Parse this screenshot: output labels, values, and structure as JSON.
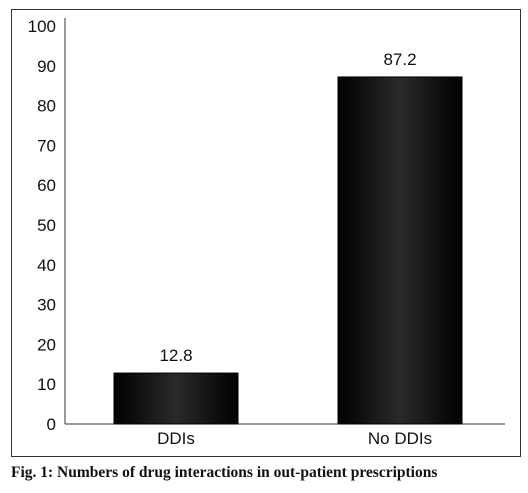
{
  "caption": "Fig. 1: Numbers of drug interactions in out-patient prescriptions",
  "chart_data": {
    "type": "bar",
    "categories": [
      "DDIs",
      "No DDIs"
    ],
    "values": [
      12.8,
      87.2
    ],
    "data_labels": [
      "12.8",
      "87.2"
    ],
    "title": "",
    "xlabel": "",
    "ylabel": "",
    "ylim": [
      0,
      100
    ],
    "yticks": [
      0,
      10,
      20,
      30,
      40,
      50,
      60,
      70,
      80,
      90,
      100
    ],
    "grid": false,
    "legend": "none",
    "bar_color": "#111111"
  }
}
